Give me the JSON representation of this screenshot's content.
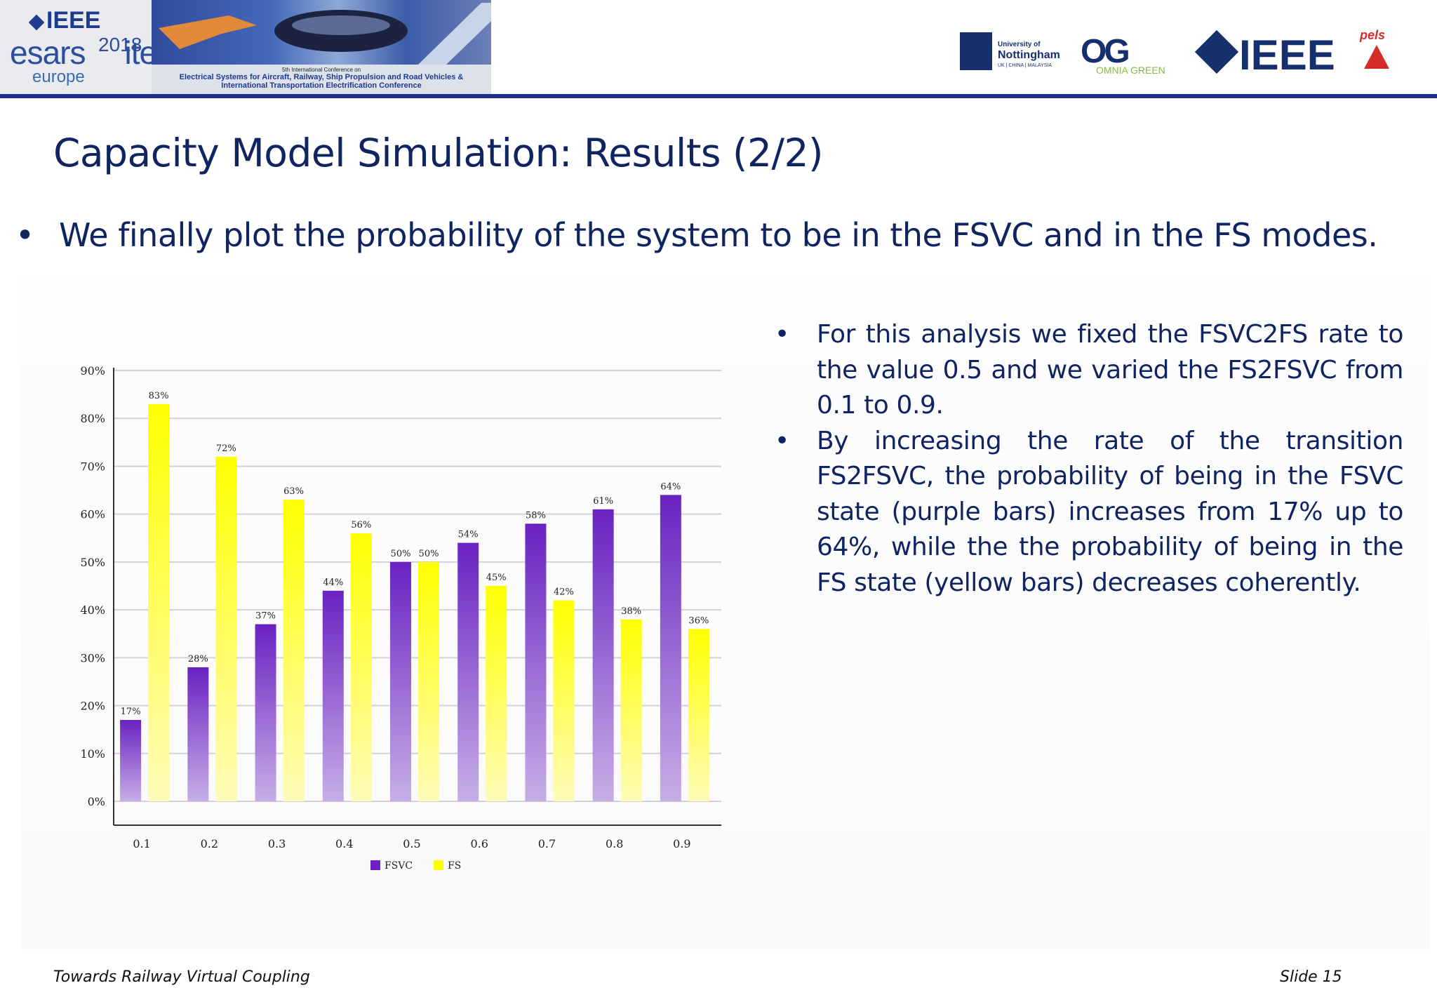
{
  "header": {
    "conference_logo": {
      "org": "IEEE",
      "brand": "esars",
      "year": "2018",
      "region": "europe",
      "brand2": "itec"
    },
    "banner_line1": "5th International Conference on",
    "banner_line2": "Electrical Systems for Aircraft, Railway, Ship Propulsion and Road Vehicles &",
    "banner_line3": "International Transportation Electrification Conference",
    "partners": {
      "nottingham_line1": "University of",
      "nottingham_line2": "Nottingham",
      "nottingham_line3": "UK | CHINA | MALAYSIA",
      "omnia_mark": "OG",
      "omnia_sub": "OMNIA GREEN",
      "ieee": "IEEE",
      "pels": "pels"
    }
  },
  "slide": {
    "title": "Capacity Model Simulation: Results (2/2)",
    "bullet_glyph": "•",
    "main_bullet": "We finally plot the probability of the system to be in the FSVC and in the FS modes.",
    "right_bullets": [
      "For this analysis we fixed the FSVC2FS rate to the value 0.5 and we varied the FS2FSVC from 0.1 to 0.9.",
      "By increasing the rate of the transition FS2FSVC, the probability of being in the FSVC state (purple bars) increases from 17% up to 64%, while the the probability of being in the FS state (yellow bars) decreases coherently."
    ]
  },
  "footer": {
    "left": "Towards Railway Virtual Coupling",
    "right": "Slide 15"
  },
  "chart_data": {
    "type": "bar",
    "categories": [
      "0.1",
      "0.2",
      "0.3",
      "0.4",
      "0.5",
      "0.6",
      "0.7",
      "0.8",
      "0.9"
    ],
    "series": [
      {
        "name": "FSVC",
        "values": [
          17,
          28,
          37,
          44,
          50,
          54,
          58,
          61,
          64
        ],
        "labels": [
          "17%",
          "28%",
          "37%",
          "44%",
          "50%",
          "54%",
          "58%",
          "61%",
          "64%"
        ],
        "color": "#6a22c2",
        "color_light": "#c7aee6"
      },
      {
        "name": "FS",
        "values": [
          83,
          72,
          63,
          56,
          50,
          45,
          42,
          38,
          36
        ],
        "labels": [
          "83%",
          "72%",
          "63%",
          "56%",
          "50%",
          "45%",
          "42%",
          "38%",
          "36%"
        ],
        "color": "#ffff00",
        "color_light": "#fffbb8"
      }
    ],
    "ylim": [
      0,
      90
    ],
    "yticks": [
      "0%",
      "10%",
      "20%",
      "30%",
      "40%",
      "50%",
      "60%",
      "70%",
      "80%",
      "90%"
    ],
    "grid": true,
    "legend": "bottom-center",
    "title": "",
    "xlabel": "",
    "ylabel": ""
  }
}
